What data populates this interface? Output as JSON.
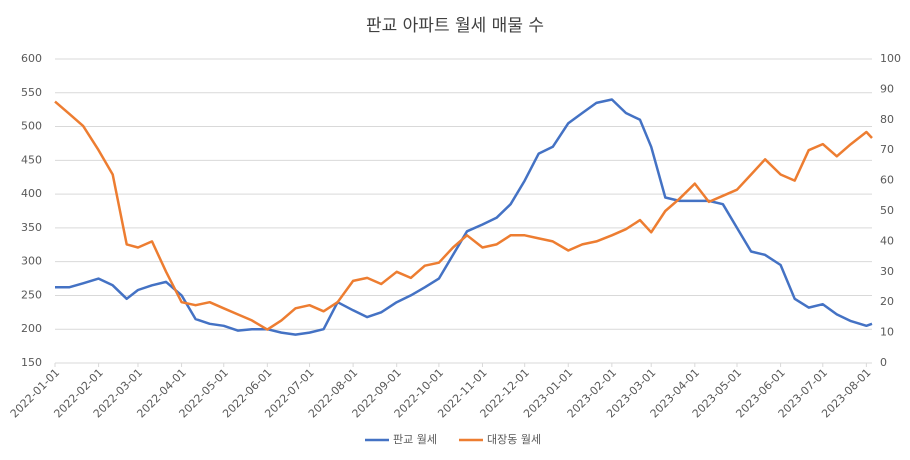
{
  "chart_data": {
    "type": "line",
    "title": "판교 아파트 월세 매물 수",
    "x": [
      "2022-01-01",
      "2022-01-11",
      "2022-01-21",
      "2022-02-01",
      "2022-02-11",
      "2022-02-21",
      "2022-03-01",
      "2022-03-11",
      "2022-03-21",
      "2022-04-01",
      "2022-04-11",
      "2022-04-21",
      "2022-05-01",
      "2022-05-11",
      "2022-05-21",
      "2022-06-01",
      "2022-06-11",
      "2022-06-21",
      "2022-07-01",
      "2022-07-11",
      "2022-07-21",
      "2022-08-01",
      "2022-08-11",
      "2022-08-21",
      "2022-09-01",
      "2022-09-11",
      "2022-09-21",
      "2022-10-01",
      "2022-10-11",
      "2022-10-21",
      "2022-11-01",
      "2022-11-11",
      "2022-11-21",
      "2022-12-01",
      "2022-12-11",
      "2022-12-21",
      "2023-01-01",
      "2023-01-11",
      "2023-01-21",
      "2023-02-01",
      "2023-02-11",
      "2023-02-21",
      "2023-03-01",
      "2023-03-11",
      "2023-03-21",
      "2023-04-01",
      "2023-04-11",
      "2023-04-21",
      "2023-05-01",
      "2023-05-11",
      "2023-05-21",
      "2023-06-01",
      "2023-06-11",
      "2023-06-21",
      "2023-07-01",
      "2023-07-11",
      "2023-07-21",
      "2023-08-01",
      "2023-08-05"
    ],
    "series": [
      {
        "name": "판교 월세",
        "color": "#4472c4",
        "axis": "y",
        "values": [
          262,
          262,
          268,
          275,
          265,
          245,
          258,
          265,
          270,
          250,
          215,
          208,
          205,
          198,
          200,
          200,
          195,
          192,
          195,
          200,
          240,
          228,
          218,
          225,
          240,
          250,
          262,
          275,
          310,
          345,
          355,
          365,
          385,
          420,
          460,
          470,
          505,
          520,
          535,
          540,
          520,
          510,
          470,
          395,
          390,
          390,
          390,
          385,
          350,
          315,
          310,
          295,
          245,
          232,
          237,
          222,
          212,
          205,
          208
        ]
      },
      {
        "name": "대장동 월세",
        "color": "#ed7d31",
        "axis": "y2",
        "values": [
          86,
          82,
          78,
          70,
          62,
          39,
          38,
          40,
          30,
          20,
          19,
          20,
          18,
          16,
          14,
          11,
          14,
          18,
          19,
          17,
          20,
          27,
          28,
          26,
          30,
          28,
          32,
          33,
          38,
          42,
          38,
          39,
          42,
          42,
          41,
          40,
          37,
          39,
          40,
          42,
          44,
          47,
          43,
          50,
          54,
          59,
          53,
          55,
          57,
          62,
          67,
          62,
          60,
          70,
          72,
          68,
          72,
          76,
          74
        ]
      }
    ],
    "xlim": [
      "2022-01-01",
      "2023-08-05"
    ],
    "xticks": [
      "2022-01-01",
      "2022-02-01",
      "2022-03-01",
      "2022-04-01",
      "2022-05-01",
      "2022-06-01",
      "2022-07-01",
      "2022-08-01",
      "2022-09-01",
      "2022-10-01",
      "2022-11-01",
      "2022-12-01",
      "2023-01-01",
      "2023-02-01",
      "2023-03-01",
      "2023-04-01",
      "2023-05-01",
      "2023-06-01",
      "2023-07-01",
      "2023-08-01"
    ],
    "ylim": [
      150,
      600
    ],
    "yticks": [
      150,
      200,
      250,
      300,
      350,
      400,
      450,
      500,
      550,
      600
    ],
    "y2lim": [
      0,
      100
    ],
    "y2ticks": [
      0,
      10,
      20,
      30,
      40,
      50,
      60,
      70,
      80,
      90,
      100
    ],
    "grid": true,
    "legend": "bottom"
  }
}
